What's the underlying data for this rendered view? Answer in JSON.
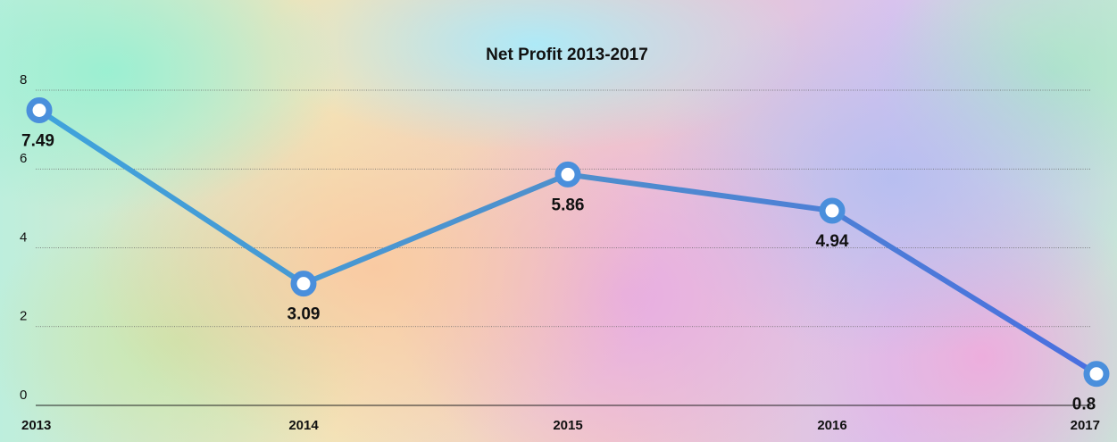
{
  "chart_data": {
    "type": "line",
    "title": "Net Profit 2013-2017",
    "categories": [
      "2013",
      "2014",
      "2015",
      "2016",
      "2017"
    ],
    "series": [
      {
        "name": "Net Profit",
        "color": "#4a8fdc",
        "values": [
          7.49,
          3.09,
          5.86,
          4.94,
          0.8
        ]
      }
    ],
    "ylim": [
      0,
      8
    ],
    "yticks": [
      0,
      2,
      4,
      6,
      8
    ],
    "grid": true
  }
}
